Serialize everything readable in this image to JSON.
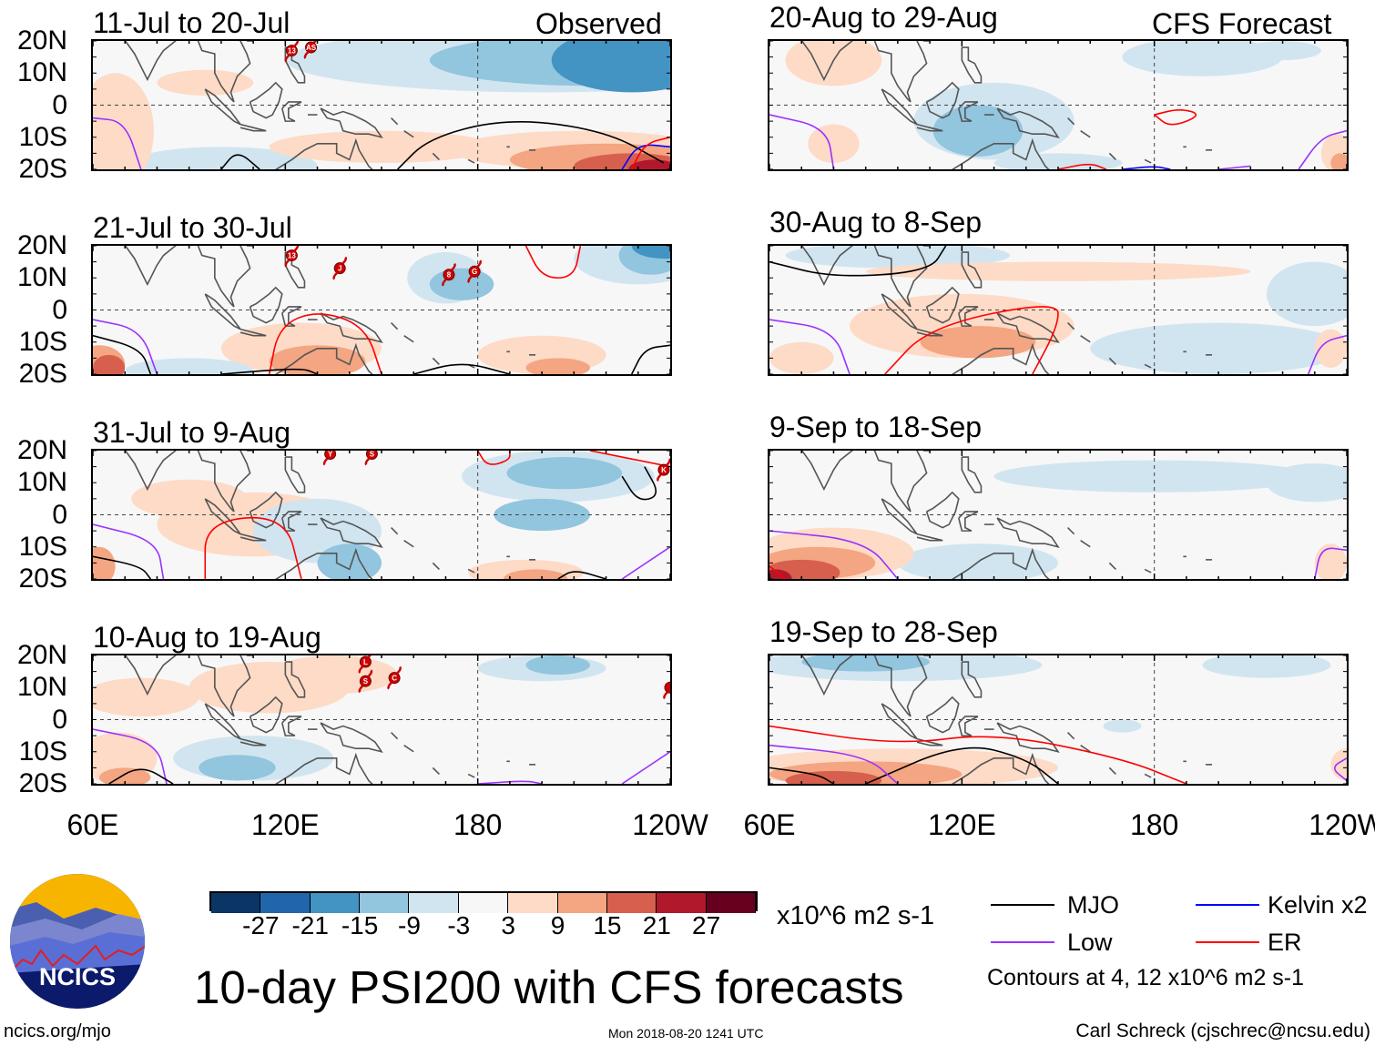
{
  "title": "10-day PSI200 with CFS forecasts",
  "site": "ncics.org/mjo",
  "timestamp": "Mon 2018-08-20 1241 UTC",
  "author": "Carl Schreck (cjschrec@ncsu.edu)",
  "logo_text": "NCICS",
  "column_headers": {
    "observed": "Observed",
    "forecast": "CFS Forecast"
  },
  "panels": [
    {
      "title": "11-Jul to 20-Jul",
      "storms": [
        "13",
        "AS"
      ]
    },
    {
      "title": "21-Jul to 30-Jul",
      "storms": [
        "13",
        "J",
        "8",
        "G"
      ]
    },
    {
      "title": "31-Jul to 9-Aug",
      "storms": [
        "Y",
        "S",
        "K"
      ]
    },
    {
      "title": "10-Aug to 19-Aug",
      "storms": [
        "L",
        "S",
        "C",
        ""
      ]
    },
    {
      "title": "20-Aug to 29-Aug",
      "storms": []
    },
    {
      "title": "30-Aug to 8-Sep",
      "storms": []
    },
    {
      "title": "9-Sep to 18-Sep",
      "storms": []
    },
    {
      "title": "19-Sep to 28-Sep",
      "storms": []
    }
  ],
  "chart_data": {
    "type": "heatmap",
    "variable": "PSI200 anomaly",
    "units": "x10^6 m2 s-1",
    "lat_ticks": [
      "20N",
      "10N",
      "0",
      "10S",
      "20S"
    ],
    "lon_ticks": [
      "60E",
      "120E",
      "180",
      "120W"
    ],
    "ylim": [
      -20,
      20
    ],
    "xlim_deg_east": [
      60,
      240
    ],
    "colorbar": {
      "levels": [
        "-27",
        "-21",
        "-15",
        "-9",
        "-3",
        "3",
        "9",
        "15",
        "21",
        "27"
      ],
      "colors": [
        "#0b3565",
        "#2166ac",
        "#4393c3",
        "#92c5de",
        "#d1e5f0",
        "#f7f7f7",
        "#fddbc7",
        "#f4a582",
        "#d6604d",
        "#b2182b",
        "#67001f"
      ]
    },
    "legend": [
      {
        "label": "MJO",
        "color": "#000000"
      },
      {
        "label": "Kelvin x2",
        "color": "#0000ff"
      },
      {
        "label": "Low",
        "color": "#9b30ff"
      },
      {
        "label": "ER",
        "color": "#ff0000"
      }
    ],
    "contour_note": "Contours at 4, 12 x10^6 m2 s-1"
  }
}
